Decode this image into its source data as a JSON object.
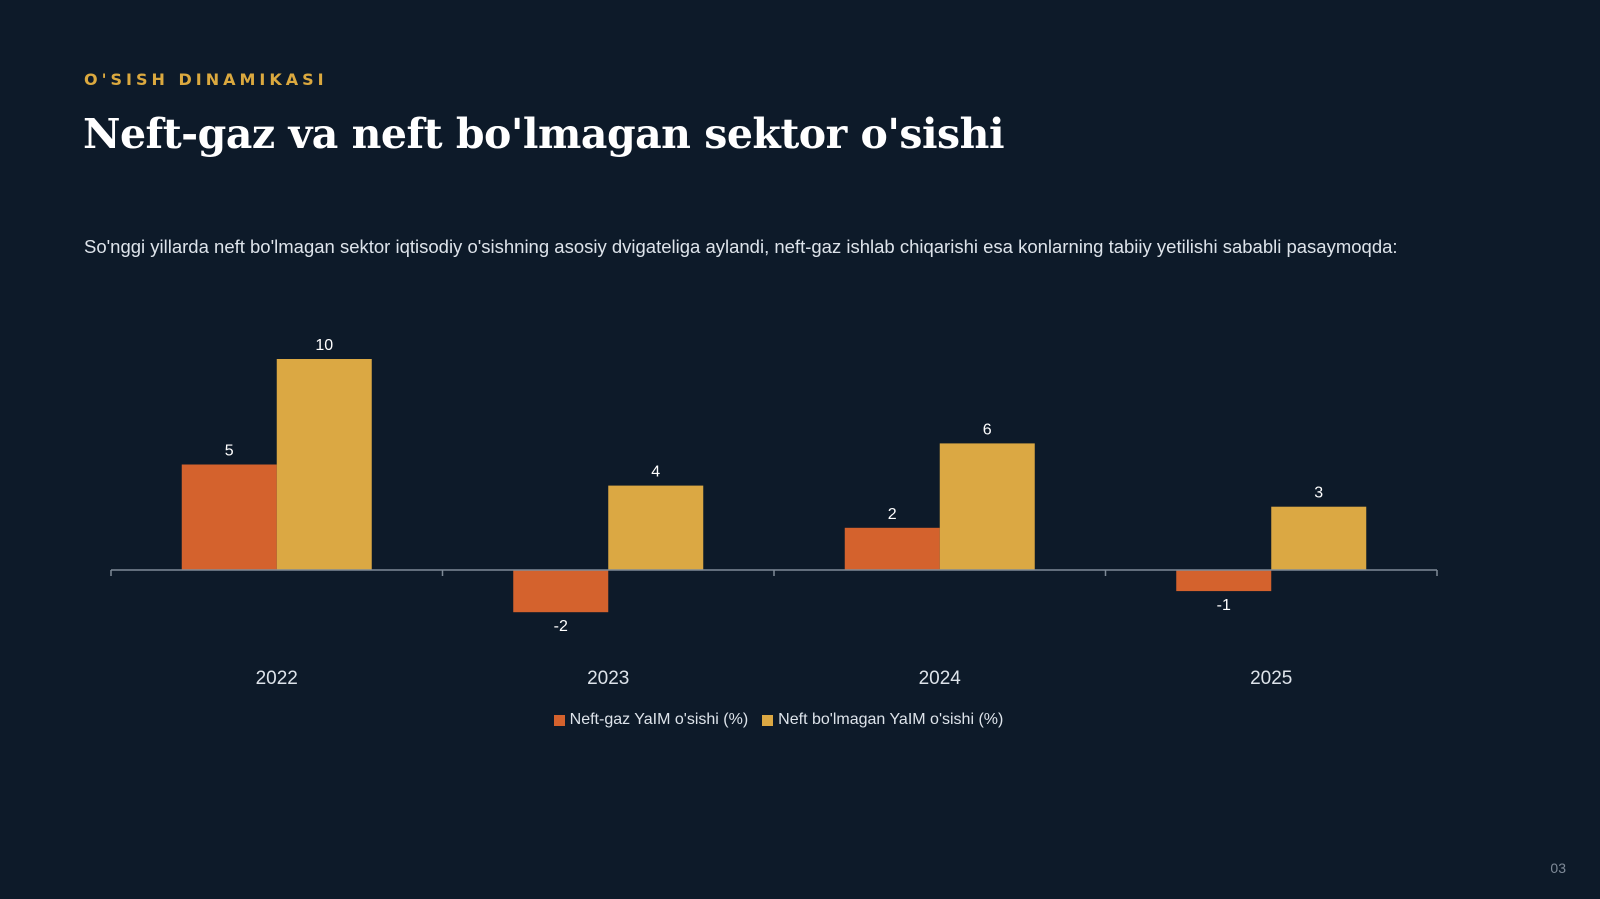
{
  "slide": {
    "eyebrow": "O'SISH DINAMIKASI",
    "title": "Neft-gaz va neft bo'lmagan sektor o'sishi",
    "subtitle": "So'nggi yillarda neft bo'lmagan sektor iqtisodiy o'sishning asosiy dvigateliga aylandi, neft-gaz ishlab chiqarishi esa konlarning tabiiy yetilishi sababli pasaymoqda:",
    "page_number": "03"
  },
  "colors": {
    "background": "#0d1a29",
    "accent": "#dba93f",
    "series_oil_gas": "#d4622d",
    "series_non_oil": "#dba843",
    "axis": "#7e8a97"
  },
  "chart_data": {
    "type": "bar",
    "categories": [
      "2022",
      "2023",
      "2024",
      "2025"
    ],
    "series": [
      {
        "name": "Neft-gaz YaIM o'sishi (%)",
        "values": [
          5,
          -2,
          2,
          -1
        ]
      },
      {
        "name": "Neft bo'lmagan YaIM o'sishi (%)",
        "values": [
          10,
          4,
          6,
          3
        ]
      }
    ],
    "data_labels": true,
    "grid": false,
    "legend": "bottom"
  }
}
